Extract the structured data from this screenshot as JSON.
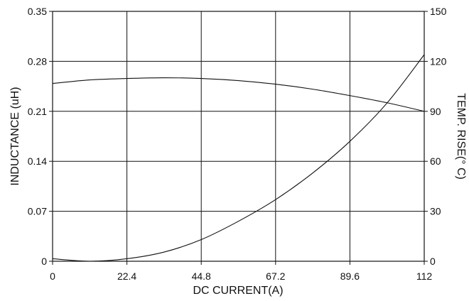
{
  "chart_data": {
    "type": "line",
    "title": "",
    "xlabel": "DC CURRENT(A)",
    "ylabel": "INDUCTANCE (uH)",
    "y2label": "TEMP. RISE(° C)",
    "xlim": [
      0,
      112
    ],
    "ylim": [
      0,
      0.35
    ],
    "y2lim": [
      0,
      150
    ],
    "x_ticks": [
      "0",
      "22.4",
      "44.8",
      "67.2",
      "89.6",
      "112"
    ],
    "y_ticks": [
      "0",
      "0.07",
      "0.14",
      "0.21",
      "0.28",
      "0.35"
    ],
    "y2_ticks": [
      "0",
      "30",
      "60",
      "90",
      "120",
      "150"
    ],
    "grid": true,
    "series": [
      {
        "axis": "left",
        "x": [
          0,
          11.2,
          22.4,
          33.6,
          44.8,
          56,
          67.2,
          78.4,
          89.6,
          100.8,
          112
        ],
        "values": [
          0.249,
          0.254,
          0.256,
          0.257,
          0.256,
          0.253,
          0.248,
          0.241,
          0.232,
          0.222,
          0.21
        ]
      },
      {
        "axis": "right",
        "x": [
          0,
          11.2,
          22.4,
          33.6,
          44.8,
          56,
          67.2,
          78.4,
          89.6,
          100.8,
          112
        ],
        "values": [
          1.5,
          0,
          1.5,
          5.5,
          13,
          24,
          37,
          53,
          72,
          95,
          124
        ]
      }
    ]
  }
}
